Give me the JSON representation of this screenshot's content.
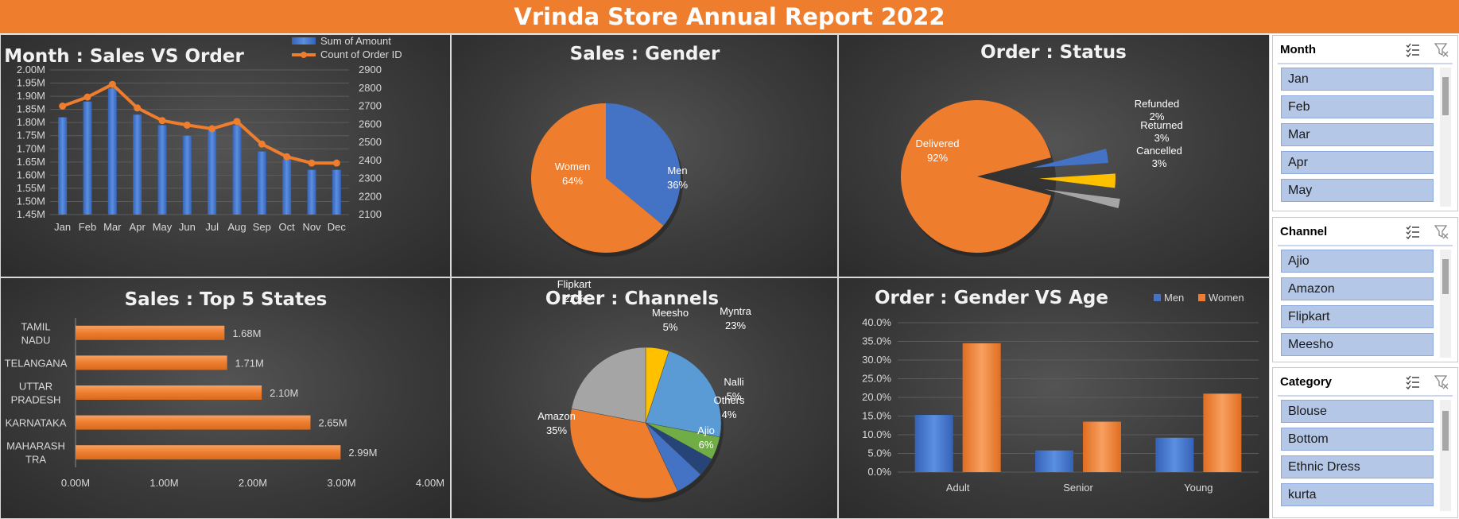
{
  "report_title": "Vrinda Store Annual Report 2022",
  "colors": {
    "orange": "#ee7d2e",
    "blue": "#4472c4",
    "gray": "#a5a5a5",
    "yellow": "#ffc000",
    "lightblue": "#5b9bd5",
    "green": "#70ad47",
    "darkblue": "#264478"
  },
  "chart_data": [
    {
      "id": "sales_vs_order",
      "type": "bar",
      "title": "Month : Sales VS Order",
      "categories": [
        "Jan",
        "Feb",
        "Mar",
        "Apr",
        "May",
        "Jun",
        "Jul",
        "Aug",
        "Sep",
        "Oct",
        "Nov",
        "Dec"
      ],
      "series": [
        {
          "name": "Sum of Amount",
          "type": "bar",
          "axis": "left",
          "values": [
            1.82,
            1.88,
            1.93,
            1.83,
            1.79,
            1.75,
            1.77,
            1.79,
            1.69,
            1.66,
            1.62,
            1.62
          ]
        },
        {
          "name": "Count of Order ID",
          "type": "line",
          "axis": "right",
          "values": [
            2700,
            2750,
            2820,
            2690,
            2620,
            2595,
            2575,
            2615,
            2490,
            2420,
            2385,
            2385
          ]
        }
      ],
      "y_left": {
        "min": 1.45,
        "max": 2.0,
        "step": 0.05,
        "ticks": [
          "1.45M",
          "1.50M",
          "1.55M",
          "1.60M",
          "1.65M",
          "1.70M",
          "1.75M",
          "1.80M",
          "1.85M",
          "1.90M",
          "1.95M",
          "2.00M"
        ]
      },
      "y_right": {
        "min": 2100,
        "max": 2900,
        "step": 100,
        "ticks": [
          "2100",
          "2200",
          "2300",
          "2400",
          "2500",
          "2600",
          "2700",
          "2800",
          "2900"
        ]
      },
      "legend": "top-right"
    },
    {
      "id": "sales_gender",
      "type": "pie",
      "title": "Sales : Gender",
      "slices": [
        {
          "label": "Men",
          "value": 36,
          "text": "36%"
        },
        {
          "label": "Women",
          "value": 64,
          "text": "64%"
        }
      ]
    },
    {
      "id": "order_status",
      "type": "pie",
      "title": "Order : Status",
      "slices": [
        {
          "label": "Delivered",
          "value": 92,
          "text": "92%"
        },
        {
          "label": "Cancelled",
          "value": 3,
          "text": "3%"
        },
        {
          "label": "Returned",
          "value": 3,
          "text": "3%"
        },
        {
          "label": "Refunded",
          "value": 2,
          "text": "2%"
        }
      ]
    },
    {
      "id": "top_states",
      "type": "bar",
      "orientation": "horizontal",
      "title": "Sales : Top 5 States",
      "categories": [
        [
          "TAMIL",
          "NADU"
        ],
        [
          "TELANGANA"
        ],
        [
          "UTTAR",
          "PRADESH"
        ],
        [
          "KARNATAKA"
        ],
        [
          "MAHARASH",
          "TRA"
        ]
      ],
      "values": [
        1.68,
        1.71,
        2.1,
        2.65,
        2.99
      ],
      "value_labels": [
        "1.68M",
        "1.71M",
        "2.10M",
        "2.65M",
        "2.99M"
      ],
      "x_axis": {
        "min": 0,
        "max": 4,
        "ticks": [
          "0.00M",
          "1.00M",
          "2.00M",
          "3.00M",
          "4.00M"
        ]
      }
    },
    {
      "id": "order_channels",
      "type": "pie",
      "title": "Order : Channels",
      "slices": [
        {
          "label": "Meesho",
          "value": 5,
          "text": "5%"
        },
        {
          "label": "Myntra",
          "value": 23,
          "text": "23%"
        },
        {
          "label": "Nalli",
          "value": 5,
          "text": "5%"
        },
        {
          "label": "Others",
          "value": 4,
          "text": "4%"
        },
        {
          "label": "Ajio",
          "value": 6,
          "text": "6%"
        },
        {
          "label": "Amazon",
          "value": 35,
          "text": "35%"
        },
        {
          "label": "Flipkart",
          "value": 22,
          "text": "22%"
        }
      ]
    },
    {
      "id": "gender_vs_age",
      "type": "bar",
      "title": "Order : Gender VS Age",
      "categories": [
        "Adult",
        "Senior",
        "Young"
      ],
      "series": [
        {
          "name": "Men",
          "values": [
            15.3,
            5.8,
            9.2
          ]
        },
        {
          "name": "Women",
          "values": [
            34.5,
            13.5,
            21.0
          ]
        }
      ],
      "y_axis": {
        "min": 0,
        "max": 40,
        "step": 5,
        "ticks": [
          "0.0%",
          "5.0%",
          "10.0%",
          "15.0%",
          "20.0%",
          "25.0%",
          "30.0%",
          "35.0%",
          "40.0%"
        ]
      },
      "legend": "top-right"
    }
  ],
  "slicers": [
    {
      "title": "Month",
      "items": [
        "Jan",
        "Feb",
        "Mar",
        "Apr",
        "May"
      ]
    },
    {
      "title": "Channel",
      "items": [
        "Ajio",
        "Amazon",
        "Flipkart",
        "Meesho"
      ]
    },
    {
      "title": "Category",
      "items": [
        "Blouse",
        "Bottom",
        "Ethnic Dress",
        "kurta"
      ]
    }
  ]
}
